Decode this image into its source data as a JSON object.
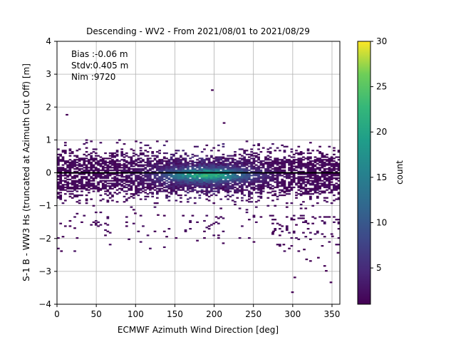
{
  "chart_data": {
    "type": "heatmap",
    "title": "Descending - WV2 - From 2021/08/01 to 2021/08/29",
    "xlabel": "ECMWF Azimuth Wind Direction [deg]",
    "ylabel": "S-1 B - WW3 Hs (truncated at Azimuth Cut Off) [m]",
    "xlim": [
      0,
      360
    ],
    "ylim": [
      -4,
      4
    ],
    "xticks": [
      "0",
      "50",
      "100",
      "150",
      "200",
      "250",
      "300",
      "350"
    ],
    "yticks": [
      "−4",
      "−3",
      "−2",
      "−1",
      "0",
      "1",
      "2",
      "3",
      "4"
    ],
    "grid": true,
    "zero_line": 0,
    "stats": [
      "Bias :-0.06 m",
      "Stdv:0.405 m",
      "Nim :9720"
    ],
    "colorbar": {
      "label": "count",
      "min": 1,
      "max": 30,
      "ticks": [
        "5",
        "10",
        "15",
        "20",
        "25",
        "30"
      ],
      "colormap": "viridis"
    },
    "bins": {
      "x_width_deg": 3,
      "y_height_m": 0.04,
      "peak": {
        "x": 190,
        "y": -0.06,
        "count": 24
      },
      "x_density_profile": [
        {
          "x": 0,
          "rel": 0.25
        },
        {
          "x": 60,
          "rel": 0.3
        },
        {
          "x": 110,
          "rel": 0.45
        },
        {
          "x": 150,
          "rel": 0.8
        },
        {
          "x": 190,
          "rel": 1.0
        },
        {
          "x": 230,
          "rel": 0.6
        },
        {
          "x": 280,
          "rel": 0.35
        },
        {
          "x": 330,
          "rel": 0.3
        },
        {
          "x": 360,
          "rel": 0.25
        }
      ],
      "outliers": [
        {
          "x": 196,
          "y": 2.5
        },
        {
          "x": 11,
          "y": 1.75
        },
        {
          "x": 211,
          "y": 1.5
        },
        {
          "x": 301,
          "y": -3.2
        },
        {
          "x": 298,
          "y": -3.65
        },
        {
          "x": 347,
          "y": -3.35
        },
        {
          "x": 356,
          "y": -2.45
        },
        {
          "x": 4,
          "y": -2.4
        },
        {
          "x": 341,
          "y": -3.0
        },
        {
          "x": 321,
          "y": -2.7
        },
        {
          "x": 316,
          "y": -2.65
        },
        {
          "x": 339,
          "y": -2.85
        },
        {
          "x": 287,
          "y": -2.2
        },
        {
          "x": 274,
          "y": -1.8
        },
        {
          "x": 313,
          "y": -2.35
        },
        {
          "x": 331,
          "y": -2.6
        },
        {
          "x": 98,
          "y": -1.25
        },
        {
          "x": 127,
          "y": -1.3
        },
        {
          "x": 48,
          "y": -1.55
        },
        {
          "x": 21,
          "y": -1.7
        },
        {
          "x": 349,
          "y": -1.95
        }
      ]
    }
  }
}
